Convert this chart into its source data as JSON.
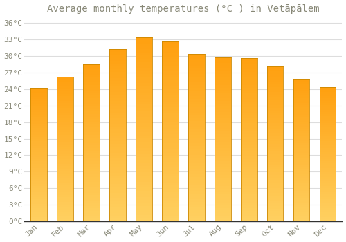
{
  "title": "Average monthly temperatures (°C ) in Vetāpālem",
  "months": [
    "Jan",
    "Feb",
    "Mar",
    "Apr",
    "May",
    "Jun",
    "Jul",
    "Aug",
    "Sep",
    "Oct",
    "Nov",
    "Dec"
  ],
  "values": [
    24.2,
    26.2,
    28.5,
    31.2,
    33.4,
    32.6,
    30.3,
    29.7,
    29.6,
    28.1,
    25.8,
    24.3
  ],
  "bar_color_top": "#FFA010",
  "bar_color_bottom": "#FFD060",
  "bar_edge_color": "#CC8800",
  "background_color": "#FFFFFF",
  "grid_color": "#DDDDDD",
  "text_color": "#888877",
  "ylim": [
    0,
    37
  ],
  "yticks": [
    0,
    3,
    6,
    9,
    12,
    15,
    18,
    21,
    24,
    27,
    30,
    33,
    36
  ],
  "ytick_labels": [
    "0°C",
    "3°C",
    "6°C",
    "9°C",
    "12°C",
    "15°C",
    "18°C",
    "21°C",
    "24°C",
    "27°C",
    "30°C",
    "33°C",
    "36°C"
  ],
  "title_fontsize": 10,
  "tick_fontsize": 8,
  "font_family": "monospace",
  "bar_width": 0.62
}
